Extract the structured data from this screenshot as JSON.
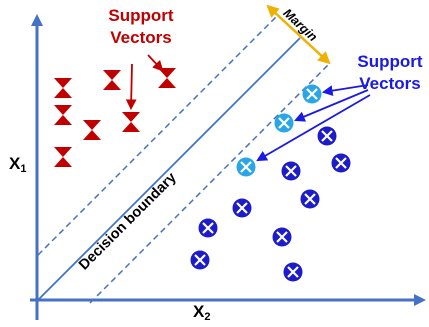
{
  "labels": {
    "support_vectors_red": [
      "Support",
      "Vectors"
    ],
    "support_vectors_blue": [
      "Support",
      "Vectors"
    ],
    "x1": "X",
    "x1_sub": "1",
    "x2": "X",
    "x2_sub": "2",
    "decision_boundary": "Decision boundary",
    "margin": "Margin"
  },
  "colors": {
    "class_a": "#c00000",
    "class_b": "#1c1cc8",
    "class_b_support": "#2aa6e8",
    "axis": "#4472c4",
    "margin_arrow": "#f0b000"
  },
  "icons": {
    "class_a_marker": "hourglass-icon",
    "class_b_marker": "crossed-circle-icon"
  }
}
